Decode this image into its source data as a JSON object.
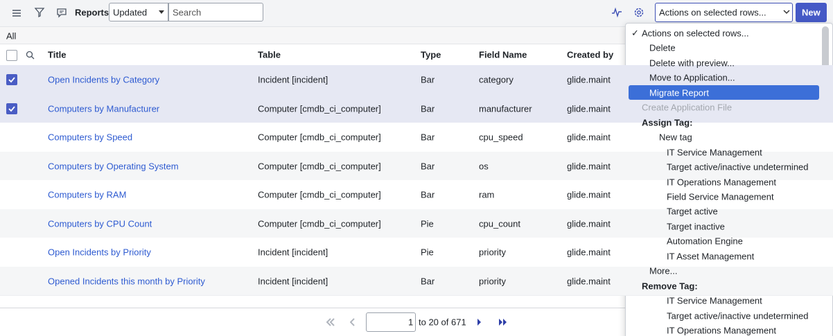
{
  "toolbar": {
    "title": "Reports",
    "sort_select": "Updated",
    "search_placeholder": "Search",
    "actions_select": "Actions on selected rows...",
    "new_button": "New"
  },
  "filter_label": "All",
  "table": {
    "columns": [
      "Title",
      "Table",
      "Type",
      "Field Name",
      "Created by"
    ],
    "rows": [
      {
        "selected": true,
        "cells": [
          "Open Incidents by Category",
          "Incident [incident]",
          "Bar",
          "category",
          "glide.maint"
        ]
      },
      {
        "selected": true,
        "cells": [
          "Computers by Manufacturer",
          "Computer [cmdb_ci_computer]",
          "Bar",
          "manufacturer",
          "glide.maint"
        ]
      },
      {
        "selected": false,
        "cells": [
          "Computers by Speed",
          "Computer [cmdb_ci_computer]",
          "Bar",
          "cpu_speed",
          "glide.maint"
        ]
      },
      {
        "selected": false,
        "cells": [
          "Computers by Operating System",
          "Computer [cmdb_ci_computer]",
          "Bar",
          "os",
          "glide.maint"
        ]
      },
      {
        "selected": false,
        "cells": [
          "Computers by RAM",
          "Computer [cmdb_ci_computer]",
          "Bar",
          "ram",
          "glide.maint"
        ]
      },
      {
        "selected": false,
        "cells": [
          "Computers by CPU Count",
          "Computer [cmdb_ci_computer]",
          "Pie",
          "cpu_count",
          "glide.maint"
        ]
      },
      {
        "selected": false,
        "cells": [
          "Open Incidents by Priority",
          "Incident [incident]",
          "Pie",
          "priority",
          "glide.maint"
        ]
      },
      {
        "selected": false,
        "cells": [
          "Opened Incidents this month by Priority",
          "Incident [incident]",
          "Bar",
          "priority",
          "glide.maint"
        ]
      }
    ]
  },
  "pagination": {
    "page": "1",
    "range_text": "to 20 of 671"
  },
  "dropdown": {
    "current": "Actions on selected rows...",
    "actions": [
      {
        "label": "Delete",
        "highlighted": false
      },
      {
        "label": "Delete with preview...",
        "highlighted": false
      },
      {
        "label": "Move to Application...",
        "highlighted": false
      },
      {
        "label": "Migrate Report",
        "highlighted": true
      }
    ],
    "disabled": "Create Application File",
    "assign_tag": {
      "label": "Assign Tag:",
      "new_tag": "New tag",
      "tags": [
        "IT Service Management",
        "Target active/inactive undetermined",
        "IT Operations Management",
        "Field Service Management",
        "Target active",
        "Target inactive",
        "Automation Engine",
        "IT Asset Management"
      ]
    },
    "more": "More...",
    "remove_tag": {
      "label": "Remove Tag:",
      "tags": [
        "IT Service Management",
        "Target active/inactive undetermined",
        "IT Operations Management"
      ]
    }
  }
}
